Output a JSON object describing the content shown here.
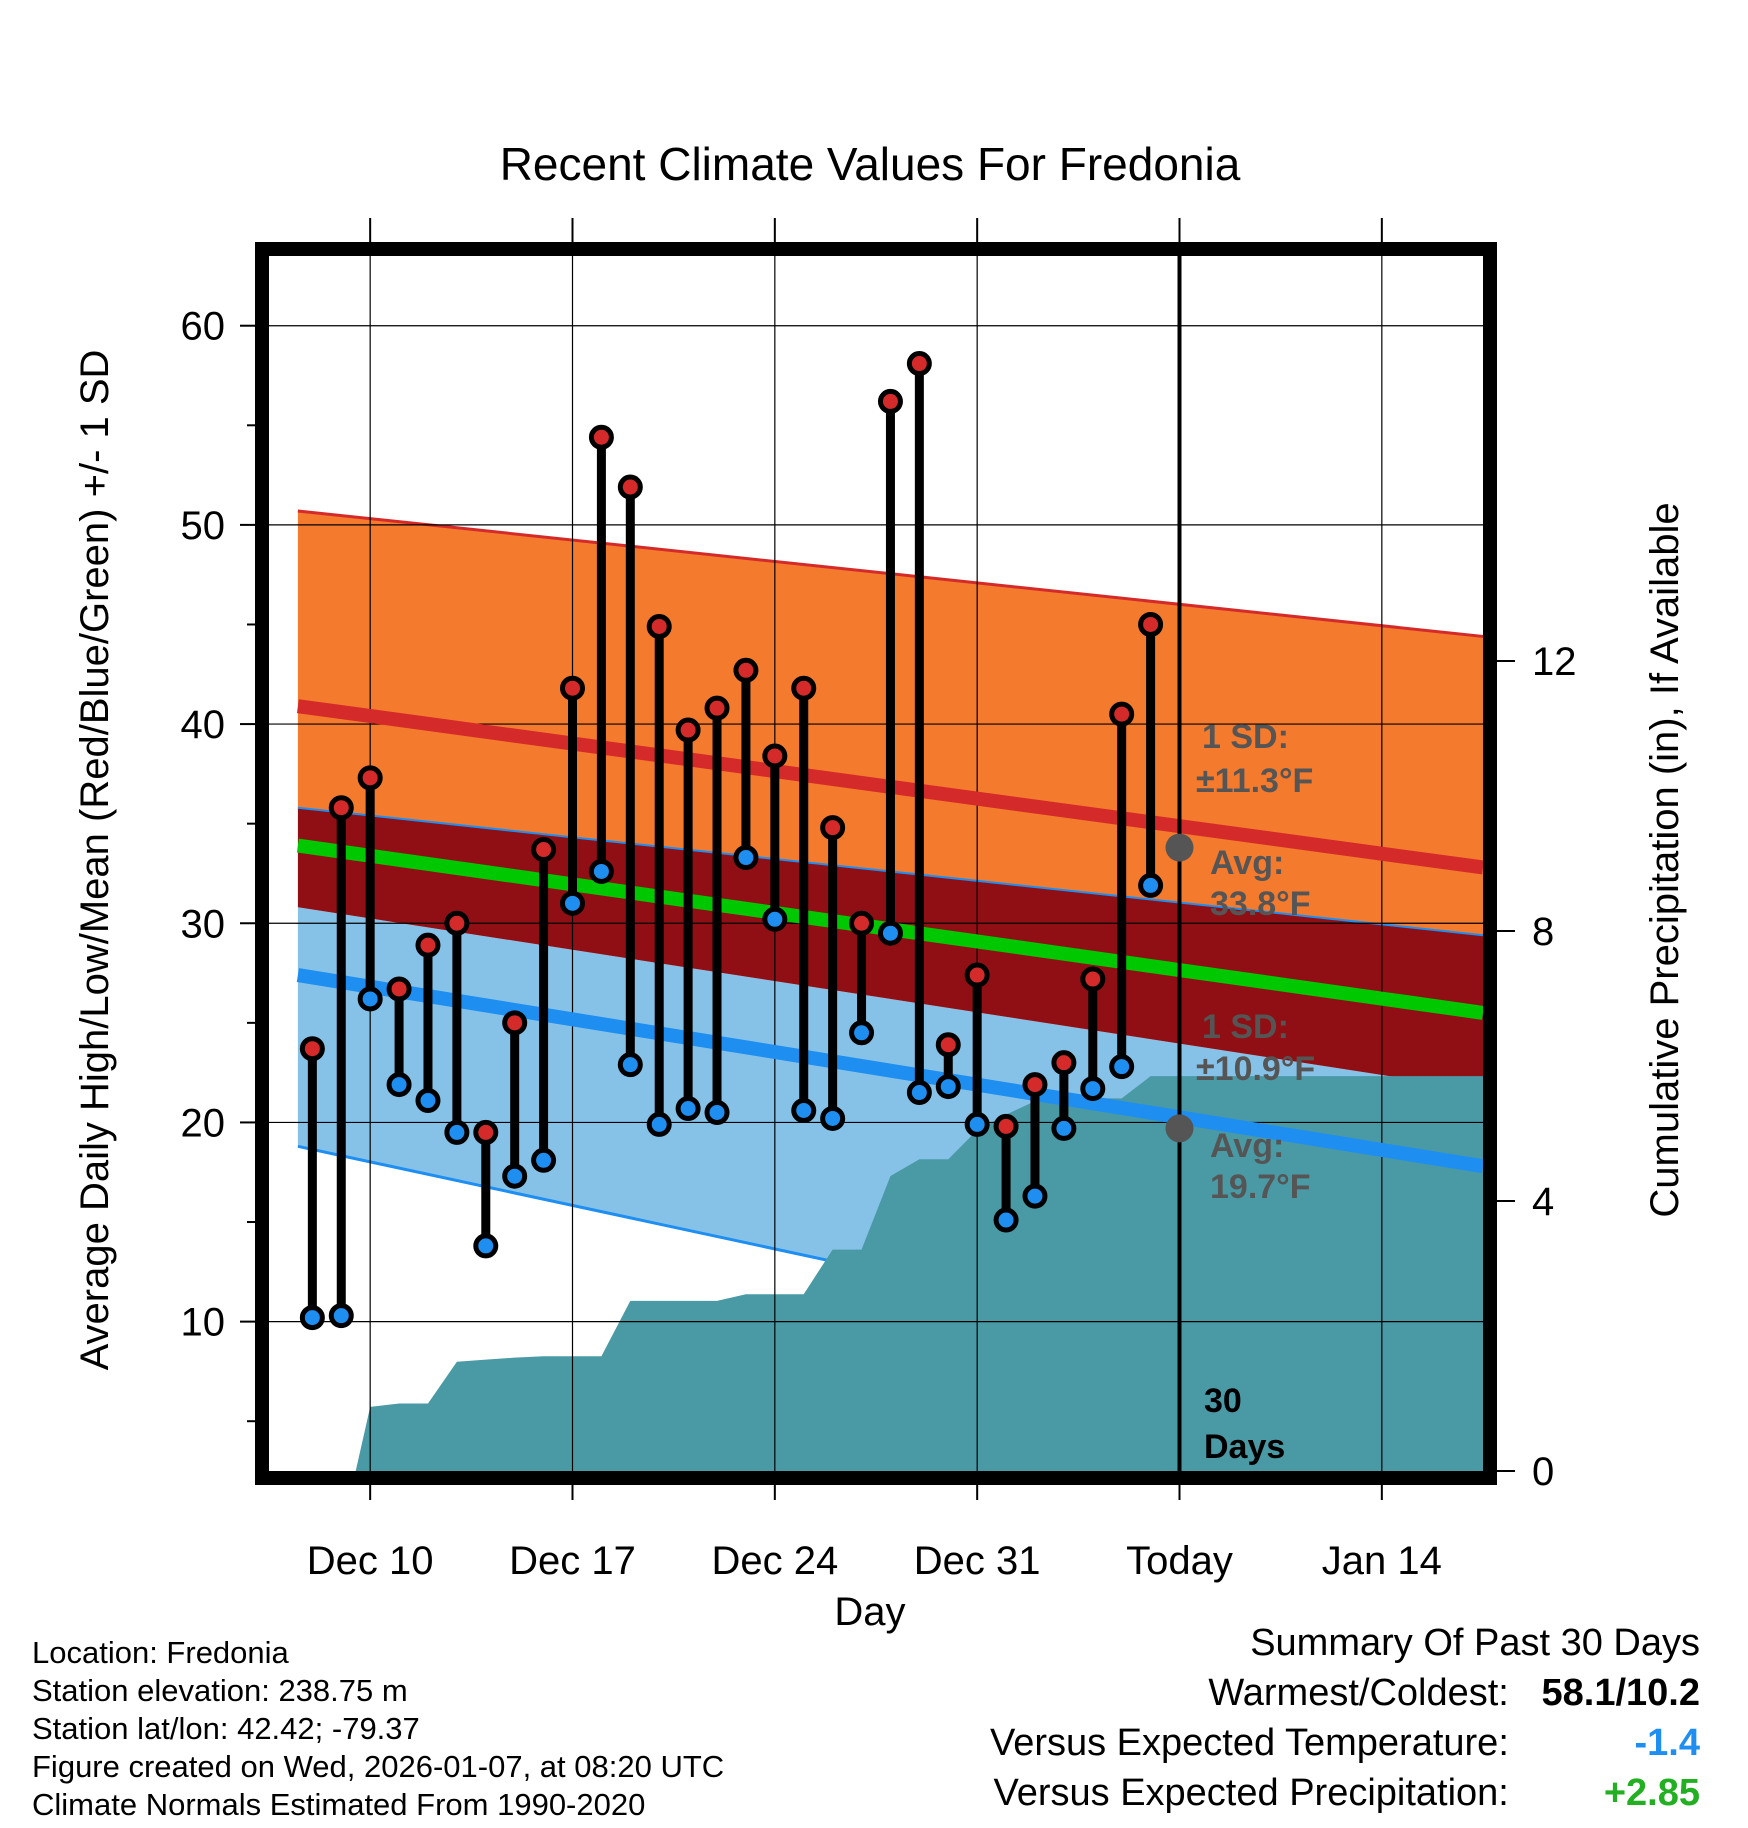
{
  "chart_data": {
    "type": "line",
    "title": "Recent Climate Values For Fredonia",
    "xlabel": "Day",
    "ylabel_left": "Average Daily High/Low/Mean (Red/Blue/Green) +/- 1 SD",
    "ylabel_right": "Cumulative Precipitation (in), If Available",
    "x_day_range": [
      -3.5,
      38.5
    ],
    "ylim_left": [
      2.5,
      63.5
    ],
    "ylim_right": [
      0,
      18
    ],
    "x_ticks": [
      {
        "day": 0,
        "label": "Dec 10"
      },
      {
        "day": 7,
        "label": "Dec 17"
      },
      {
        "day": 14,
        "label": "Dec 24"
      },
      {
        "day": 21,
        "label": "Dec 31"
      },
      {
        "day": 28,
        "label": "Today"
      },
      {
        "day": 35,
        "label": "Jan 14"
      }
    ],
    "y_ticks_left": [
      "10",
      "20",
      "30",
      "40",
      "50",
      "60"
    ],
    "y_tick_values_left": [
      10,
      20,
      30,
      40,
      50,
      60
    ],
    "y_minor_left": [
      5,
      15,
      25,
      35,
      45,
      55
    ],
    "y_ticks_right": [
      "0",
      "4",
      "8",
      "12"
    ],
    "y_tick_values_right": [
      0,
      4,
      8,
      12
    ],
    "today_day": 28,
    "normal_high": {
      "day": [
        -2.5,
        38.5
      ],
      "mean": [
        40.9,
        32.8
      ],
      "upper": [
        50.7,
        44.4
      ],
      "lower": [
        35.8,
        29.4
      ]
    },
    "normal_low": {
      "day": [
        -2.5,
        38.5
      ],
      "mean": [
        27.4,
        17.8
      ],
      "upper": [
        30.8,
        21.6
      ],
      "lower": [
        18.8,
        6.0
      ]
    },
    "normal_mean": {
      "day": [
        -2.5,
        38.5
      ],
      "values": [
        33.9,
        25.5
      ]
    },
    "daily": {
      "day": [
        -2,
        -1,
        0,
        1,
        2,
        3,
        4,
        5,
        6,
        7,
        8,
        9,
        10,
        11,
        12,
        13,
        14,
        15,
        16,
        17,
        18,
        19,
        20,
        21,
        22,
        23,
        24,
        25,
        26,
        27
      ],
      "high": [
        23.7,
        35.8,
        37.3,
        26.7,
        28.9,
        30.0,
        19.5,
        25.0,
        33.7,
        41.8,
        54.4,
        51.9,
        44.9,
        39.7,
        40.8,
        42.7,
        38.4,
        41.8,
        34.8,
        30.0,
        56.2,
        58.1,
        23.9,
        27.4,
        19.8,
        21.9,
        23.0,
        27.2,
        40.5,
        45.0
      ],
      "low": [
        10.2,
        10.3,
        26.2,
        21.9,
        21.1,
        19.5,
        13.8,
        17.3,
        18.1,
        31.0,
        32.6,
        22.9,
        19.9,
        20.7,
        20.5,
        33.3,
        30.2,
        20.6,
        20.2,
        24.5,
        29.5,
        21.5,
        21.8,
        19.9,
        15.1,
        16.3,
        19.7,
        21.7,
        22.8,
        31.9
      ]
    },
    "precip_cumulative": {
      "day": [
        -2,
        -1,
        -0.5,
        0,
        1,
        2,
        3,
        4,
        5,
        6,
        7,
        8,
        9,
        10,
        11,
        12,
        13,
        14,
        15,
        16,
        17,
        18,
        19,
        20,
        21,
        22,
        23,
        24,
        25,
        26,
        27,
        28,
        38.5
      ],
      "values": [
        0,
        0,
        0,
        0.95,
        1.0,
        1.0,
        1.62,
        1.65,
        1.68,
        1.7,
        1.7,
        1.7,
        2.52,
        2.52,
        2.52,
        2.52,
        2.62,
        2.62,
        2.62,
        3.28,
        3.28,
        4.37,
        4.62,
        4.62,
        5.05,
        5.28,
        5.48,
        5.5,
        5.52,
        5.52,
        5.85,
        5.85,
        5.85
      ]
    },
    "annotations": {
      "high_sd_label": "1 SD:",
      "high_sd_value": "±11.3°F",
      "high_avg_label": "Avg:",
      "high_avg_value": "33.8°F",
      "high_avg_y": 33.8,
      "low_sd_label": "1 SD:",
      "low_sd_value": "±10.9°F",
      "low_avg_label": "Avg:",
      "low_avg_value": "19.7°F",
      "low_avg_y": 19.7,
      "window_count": "30",
      "window_unit": "Days"
    },
    "colors": {
      "high_band": "#f47a2e",
      "high_line": "#d42a2a",
      "low_band": "#86c2e8",
      "low_line": "#1e8ef0",
      "overlap_band": "#8f0f14",
      "mean_line": "#00c800",
      "precip": "#4a9aa6",
      "high_marker": "#d42a2a",
      "low_marker": "#1e8ef0",
      "annotation": "#555555"
    }
  },
  "footer": {
    "location": "Location: Fredonia",
    "elevation": "Station elevation: 238.75 m",
    "latlon": "Station lat/lon: 42.42; -79.37",
    "created": "Figure created on Wed, 2026-01-07, at 08:20 UTC",
    "normals": "Climate Normals Estimated From 1990-2020"
  },
  "summary": {
    "title": "Summary Of Past 30 Days",
    "warmest_label": "Warmest/Coldest:",
    "warmest_value": "58.1/10.2",
    "temp_label": "Versus Expected Temperature:",
    "temp_value": "-1.4",
    "temp_color": "#1e8ef0",
    "precip_label": "Versus Expected Precipitation:",
    "precip_value": "+2.85",
    "precip_color": "#22b022"
  }
}
